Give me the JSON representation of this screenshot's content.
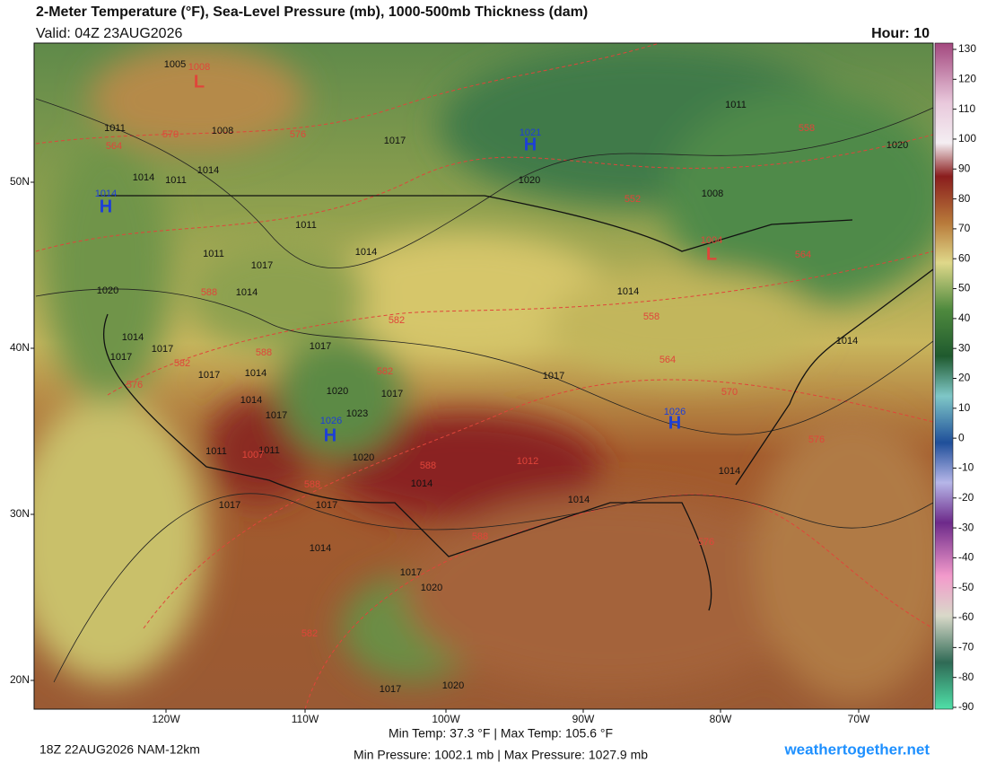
{
  "header": {
    "title": "2-Meter Temperature (°F), Sea-Level Pressure (mb), 1000-500mb Thickness (dam)",
    "valid": "Valid: 04Z 23AUG2026",
    "hour": "Hour: 10"
  },
  "axes": {
    "lat_labels": [
      "50N",
      "40N",
      "30N",
      "20N"
    ],
    "lon_labels": [
      "120W",
      "110W",
      "100W",
      "90W",
      "80W",
      "70W"
    ]
  },
  "colorbar": {
    "ticks": [
      130,
      120,
      110,
      100,
      90,
      80,
      70,
      60,
      50,
      40,
      30,
      20,
      10,
      0,
      -10,
      -20,
      -30,
      -40,
      -50,
      -60,
      -70,
      -80,
      -90
    ]
  },
  "map_labels": [
    {
      "text": "1005",
      "color": "#111111"
    },
    {
      "text": "1008",
      "color": "#e0453a"
    },
    {
      "text": "L",
      "color": "#e0453a"
    },
    {
      "text": "1011",
      "color": "#111111"
    },
    {
      "text": "564",
      "color": "#e0453a"
    },
    {
      "text": "570",
      "color": "#e0453a"
    },
    {
      "text": "1008",
      "color": "#111111"
    },
    {
      "text": "576",
      "color": "#e0453a"
    },
    {
      "text": "1014",
      "color": "#111111"
    },
    {
      "text": "1014",
      "color": "#111111"
    },
    {
      "text": "1011",
      "color": "#111111"
    },
    {
      "text": "1014",
      "color": "#1d3fd6"
    },
    {
      "text": "H",
      "color": "#1d3fd6"
    },
    {
      "text": "1017",
      "color": "#111111"
    },
    {
      "text": "1021",
      "color": "#1d3fd6"
    },
    {
      "text": "H",
      "color": "#1d3fd6"
    },
    {
      "text": "1020",
      "color": "#111111"
    },
    {
      "text": "1011",
      "color": "#111111"
    },
    {
      "text": "558",
      "color": "#e0453a"
    },
    {
      "text": "1020",
      "color": "#111111"
    },
    {
      "text": "552",
      "color": "#e0453a"
    },
    {
      "text": "1008",
      "color": "#111111"
    },
    {
      "text": "1004",
      "color": "#e0453a"
    },
    {
      "text": "L",
      "color": "#e0453a"
    },
    {
      "text": "564",
      "color": "#e0453a"
    },
    {
      "text": "1011",
      "color": "#111111"
    },
    {
      "text": "1014",
      "color": "#111111"
    },
    {
      "text": "1011",
      "color": "#111111"
    },
    {
      "text": "1017",
      "color": "#111111"
    },
    {
      "text": "1020",
      "color": "#111111"
    },
    {
      "text": "588",
      "color": "#e0453a"
    },
    {
      "text": "1014",
      "color": "#111111"
    },
    {
      "text": "1014",
      "color": "#111111"
    },
    {
      "text": "558",
      "color": "#e0453a"
    },
    {
      "text": "582",
      "color": "#e0453a"
    },
    {
      "text": "1014",
      "color": "#111111"
    },
    {
      "text": "1017",
      "color": "#111111"
    },
    {
      "text": "588",
      "color": "#e0453a"
    },
    {
      "text": "1017",
      "color": "#111111"
    },
    {
      "text": "1014",
      "color": "#111111"
    },
    {
      "text": "1017",
      "color": "#111111"
    },
    {
      "text": "582",
      "color": "#e0453a"
    },
    {
      "text": "1017",
      "color": "#111111"
    },
    {
      "text": "1014",
      "color": "#111111"
    },
    {
      "text": "582",
      "color": "#e0453a"
    },
    {
      "text": "564",
      "color": "#e0453a"
    },
    {
      "text": "1017",
      "color": "#111111"
    },
    {
      "text": "576",
      "color": "#e0453a"
    },
    {
      "text": "1020",
      "color": "#111111"
    },
    {
      "text": "1017",
      "color": "#111111"
    },
    {
      "text": "570",
      "color": "#e0453a"
    },
    {
      "text": "1014",
      "color": "#111111"
    },
    {
      "text": "1017",
      "color": "#111111"
    },
    {
      "text": "1023",
      "color": "#111111"
    },
    {
      "text": "1026",
      "color": "#1d3fd6"
    },
    {
      "text": "H",
      "color": "#1d3fd6"
    },
    {
      "text": "1026",
      "color": "#1d3fd6"
    },
    {
      "text": "H",
      "color": "#1d3fd6"
    },
    {
      "text": "576",
      "color": "#e0453a"
    },
    {
      "text": "1011",
      "color": "#111111"
    },
    {
      "text": "1011",
      "color": "#111111"
    },
    {
      "text": "1007",
      "color": "#e0453a"
    },
    {
      "text": "1020",
      "color": "#111111"
    },
    {
      "text": "588",
      "color": "#e0453a"
    },
    {
      "text": "1012",
      "color": "#e0453a"
    },
    {
      "text": "1014",
      "color": "#111111"
    },
    {
      "text": "1014",
      "color": "#111111"
    },
    {
      "text": "588",
      "color": "#e0453a"
    },
    {
      "text": "1014",
      "color": "#111111"
    },
    {
      "text": "1017",
      "color": "#111111"
    },
    {
      "text": "1017",
      "color": "#111111"
    },
    {
      "text": "588",
      "color": "#e0453a"
    },
    {
      "text": "576",
      "color": "#e0453a"
    },
    {
      "text": "1014",
      "color": "#111111"
    },
    {
      "text": "1017",
      "color": "#111111"
    },
    {
      "text": "1020",
      "color": "#111111"
    },
    {
      "text": "582",
      "color": "#e0453a"
    },
    {
      "text": "1017",
      "color": "#111111"
    },
    {
      "text": "1020",
      "color": "#111111"
    }
  ],
  "footer": {
    "run": "18Z 22AUG2026 NAM-12km",
    "temp_range": "Min Temp:  37.3 °F | Max Temp: 105.6 °F",
    "pressure_range": "Min Pressure: 1002.1 mb | Max Pressure: 1027.9 mb",
    "site": "weathertogether.net"
  }
}
